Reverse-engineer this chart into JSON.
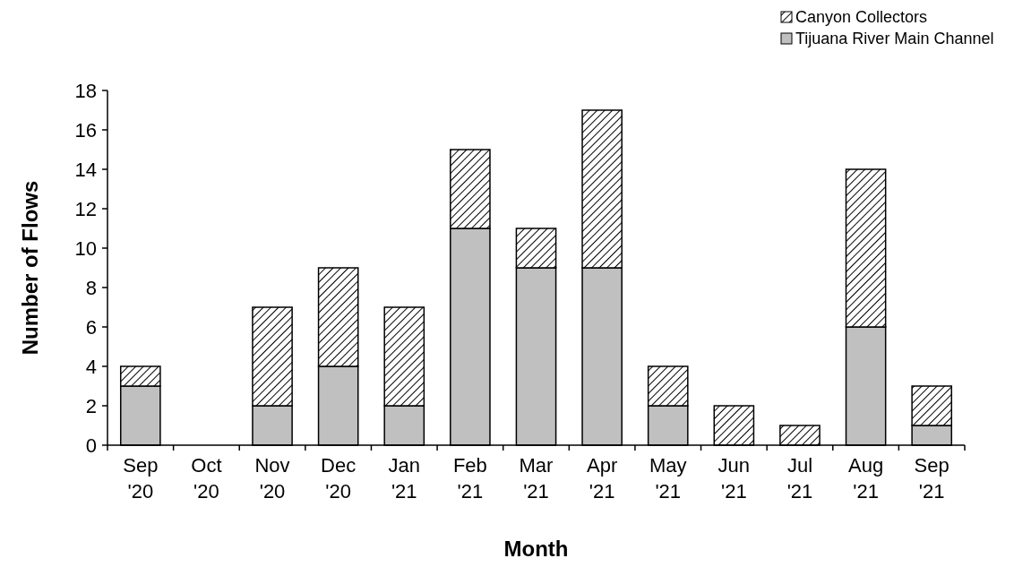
{
  "chart_data": {
    "type": "bar",
    "stacked": true,
    "xlabel": "Month",
    "ylabel": "Number of Flows",
    "categories": [
      "Sep '20",
      "Oct '20",
      "Nov '20",
      "Dec '20",
      "Jan '21",
      "Feb '21",
      "Mar '21",
      "Apr '21",
      "May '21",
      "Jun '21",
      "Jul '21",
      "Aug '21",
      "Sep '21"
    ],
    "series": [
      {
        "name": "Tijuana River Main Channel",
        "color": "#c0c0c0",
        "values": [
          3,
          0,
          2,
          4,
          2,
          11,
          9,
          9,
          2,
          0,
          0,
          6,
          1
        ]
      },
      {
        "name": "Canyon Collectors",
        "color": "#000000",
        "values": [
          1,
          0,
          5,
          5,
          5,
          4,
          2,
          8,
          2,
          2,
          1,
          8,
          2
        ]
      }
    ],
    "ylim": [
      0,
      18
    ],
    "yticks": [
      0,
      2,
      4,
      6,
      8,
      10,
      12,
      14,
      16,
      18
    ],
    "grid": false,
    "legend": "top right"
  }
}
